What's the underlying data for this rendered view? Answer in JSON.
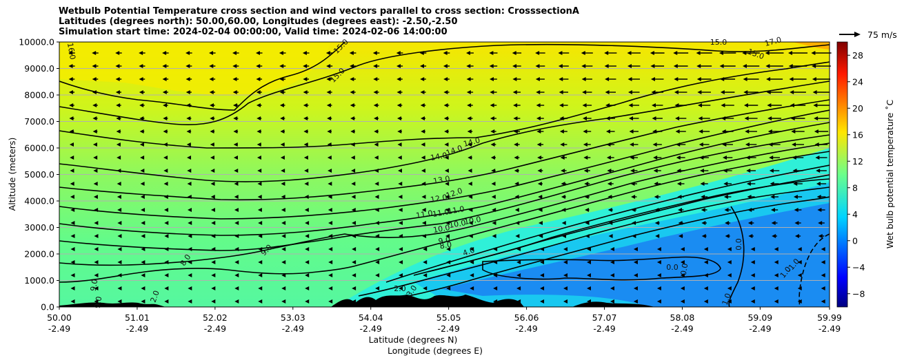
{
  "title": {
    "line1": "Wetbulb Potential Temperature cross section and wind vectors parallel to cross section: CrosssectionA",
    "line2": "Latitudes (degrees north): 50.00,60.00, Longitudes (degrees east): -2.50,-2.50",
    "line3": "Simulation start time: 2024-02-04 00:00:00, Valid time: 2024-02-06 14:00:00"
  },
  "quiver_key": "75 m/s",
  "chart_data": {
    "type": "heatmap",
    "xlabel_lat": "Latitude (degrees N)",
    "xlabel_lon": "Longitude (degrees E)",
    "ylabel": "Altitude (meters)",
    "colorbar_label": "Wet bulb potential temperature ˚C",
    "x_ticks": [
      {
        "lat": "50.00",
        "lon": "-2.49",
        "value": 50.0
      },
      {
        "lat": "51.01",
        "lon": "-2.49",
        "value": 51.01
      },
      {
        "lat": "52.02",
        "lon": "-2.49",
        "value": 52.02
      },
      {
        "lat": "53.03",
        "lon": "-2.49",
        "value": 53.03
      },
      {
        "lat": "54.04",
        "lon": "-2.49",
        "value": 54.04
      },
      {
        "lat": "55.05",
        "lon": "-2.49",
        "value": 55.05
      },
      {
        "lat": "56.06",
        "lon": "-2.49",
        "value": 56.06
      },
      {
        "lat": "57.07",
        "lon": "-2.49",
        "value": 57.07
      },
      {
        "lat": "58.08",
        "lon": "-2.49",
        "value": 58.08
      },
      {
        "lat": "59.09",
        "lon": "-2.49",
        "value": 59.09
      },
      {
        "lat": "59.99",
        "lon": "-2.49",
        "value": 59.99
      }
    ],
    "y_ticks": [
      "0.0",
      "1000.0",
      "2000.0",
      "3000.0",
      "4000.0",
      "5000.0",
      "6000.0",
      "7000.0",
      "8000.0",
      "9000.0",
      "10000.0"
    ],
    "xlim": [
      50.0,
      59.99
    ],
    "ylim": [
      0,
      10000
    ],
    "grid": "horizontal",
    "colorbar_ticks": [
      "−8",
      "−4",
      "0",
      "4",
      "8",
      "12",
      "16",
      "20",
      "24",
      "28"
    ],
    "colorbar_range": [
      -10,
      30
    ],
    "colormap": "jet",
    "contour_labels": [
      "16.0",
      "15.0",
      "15.0",
      "15.0",
      "15.0",
      "17.0",
      "14.0",
      "14.0",
      "14.0",
      "13.0",
      "12.0",
      "12.0",
      "11.0",
      "11.0",
      "11.0",
      "10.0",
      "10.0",
      "10.0",
      "9.0",
      "9.0",
      "8.0",
      "8.0",
      "4.0",
      "3.0",
      "2.0",
      "0.0",
      "0.0",
      "0.0",
      "0.0",
      "1.0",
      "1.0",
      "-1.0",
      "9.0",
      "9.0",
      "2.0"
    ],
    "description_points": [
      {
        "x": 50.0,
        "y": 500,
        "value": 7
      },
      {
        "x": 50.0,
        "y": 5000,
        "value": 12.5
      },
      {
        "x": 53.5,
        "y": 9500,
        "value": 17
      },
      {
        "x": 56.0,
        "y": 1000,
        "value": 3
      },
      {
        "x": 58.5,
        "y": 2000,
        "value": -1
      },
      {
        "x": 59.99,
        "y": 10000,
        "value": 19
      }
    ],
    "terrain_color": "#000000"
  }
}
